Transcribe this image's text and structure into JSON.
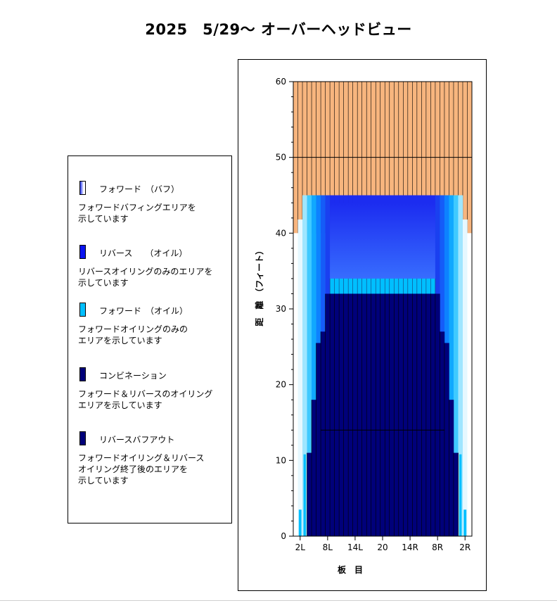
{
  "title": "2025　5/29～ オーバーヘッドビュー",
  "legend": [
    {
      "label": "フォワード　（バフ）",
      "desc": "フォワードバフィングエリアを\n示しています",
      "swatch": "buff"
    },
    {
      "label": "リバース　　（オイル）",
      "desc": "リバースオイリングのみのエリアを\n示しています",
      "swatch": "#0a14f0"
    },
    {
      "label": "フォワード　（オイル）",
      "desc": "フォワードオイリングのみの\nエリアを示しています",
      "swatch": "#00bfff"
    },
    {
      "label": "コンビネーション",
      "desc": "フォワード＆リバースのオイリング\nエリアを示しています",
      "swatch": "#00007a"
    },
    {
      "label": "リバースバフアウト",
      "desc": "フォワードオイリング＆リバース\nオイリング終了後のエリアを\n示しています",
      "swatch": "#00007a"
    }
  ],
  "chart_data": {
    "type": "heatmap",
    "xlabel": "板　目",
    "ylabel": "距　離　（フィート）",
    "xticks": [
      "2L",
      "8L",
      "14L",
      "20",
      "14R",
      "8R",
      "2R"
    ],
    "xtick_boards": [
      2,
      8,
      14,
      20,
      26,
      32,
      38
    ],
    "ylim": [
      0,
      60
    ],
    "yticks": [
      0,
      10,
      20,
      30,
      40,
      50,
      60
    ],
    "boards": 39,
    "colors": {
      "buff_lane": "#f7b57e",
      "reverse_oil_top": "#1c2cf0",
      "reverse_oil_bottom": "#3a73ff",
      "forward_oil": "#00bfff",
      "combination": "#00007a",
      "edge": "#ffffff"
    },
    "oil_pattern_feet": 45,
    "oil_boundary_feet": 40,
    "combination_feet": 32,
    "forward_oil_band_feet": [
      32,
      34
    ],
    "reference_lines_feet": [
      50,
      14
    ],
    "combination_steps": [
      {
        "board": 4,
        "feet": 11
      },
      {
        "board": 5,
        "feet": 18
      },
      {
        "board": 6,
        "feet": 25.5
      },
      {
        "board": 7,
        "feet": 27
      },
      {
        "board": 8,
        "feet": 32
      }
    ]
  }
}
